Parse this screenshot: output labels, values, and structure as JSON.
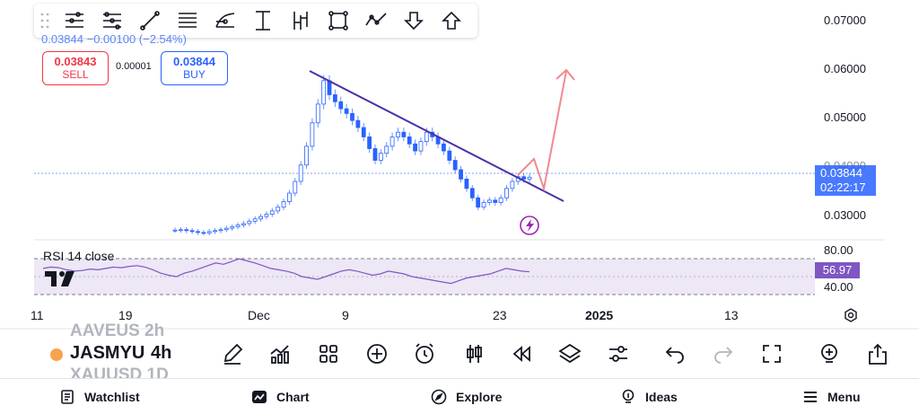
{
  "toolbar_icons": [
    "drag-handle-icon",
    "horizontal-lines-icon",
    "parallel-channel-icon",
    "trend-line-icon",
    "fib-lines-icon",
    "pitchfork-icon",
    "measure-icon",
    "price-range-icon",
    "rectangle-icon",
    "path-icon",
    "arrow-down-icon",
    "arrow-up-icon"
  ],
  "legend": {
    "text": "0.03844 −0.00100 (−2.54%)"
  },
  "trade": {
    "sell_price": "0.03843",
    "sell_label": "SELL",
    "spread": "0.00001",
    "buy_price": "0.03844",
    "buy_label": "BUY"
  },
  "price_scale": [
    "0.07000",
    "0.06000",
    "0.05000",
    "0.04000",
    "0.03000"
  ],
  "current_price": {
    "value": "0.03844",
    "countdown": "02:22:17"
  },
  "rsi": {
    "label": "RSI 14 close",
    "upper": "80.00",
    "lower": "40.00",
    "value": "56.97"
  },
  "time_scale": [
    "11",
    "19",
    "Dec",
    "9",
    "23",
    "2025",
    "13"
  ],
  "symbols": {
    "above": "AAVEUS 2h",
    "main": "JASMYU",
    "timeframe": "4h",
    "below": "XAUUSD 1D"
  },
  "tools": [
    "brush-icon",
    "indicators-icon",
    "templates-icon",
    "add-icon",
    "alert-icon",
    "replay-candles-icon",
    "bar-replay-icon",
    "layers-icon",
    "settings-sliders-icon",
    "undo-icon",
    "redo-icon",
    "fullscreen-icon",
    "ideas-bulb-icon",
    "share-icon"
  ],
  "nav": {
    "watchlist": "Watchlist",
    "chart": "Chart",
    "explore": "Explore",
    "ideas": "Ideas",
    "menu": "Menu"
  },
  "colors": {
    "trendline": "#4a2fa8",
    "projection": "#f08a8f",
    "rsi_line": "#7e57c2",
    "rsi_band": "#ede7f6",
    "candle": "#2962ff",
    "price_line": "#2962ff"
  },
  "chart_data": {
    "type": "candlestick",
    "price_range": [
      0.026,
      0.072
    ],
    "last_price": 0.03844,
    "trendline": {
      "from": 0.0598,
      "to": 0.0348
    },
    "closes": [
      0.0271,
      0.0272,
      0.027,
      0.0268,
      0.0266,
      0.0265,
      0.0268,
      0.027,
      0.0272,
      0.0275,
      0.0278,
      0.0282,
      0.0285,
      0.029,
      0.0295,
      0.03,
      0.0305,
      0.0312,
      0.032,
      0.0332,
      0.035,
      0.0375,
      0.041,
      0.045,
      0.05,
      0.054,
      0.059,
      0.056,
      0.0545,
      0.053,
      0.052,
      0.0505,
      0.049,
      0.047,
      0.0445,
      0.042,
      0.0435,
      0.045,
      0.047,
      0.048,
      0.047,
      0.0455,
      0.044,
      0.046,
      0.048,
      0.047,
      0.0455,
      0.044,
      0.042,
      0.04,
      0.038,
      0.036,
      0.034,
      0.032,
      0.033,
      0.0335,
      0.033,
      0.034,
      0.036,
      0.0375,
      0.0385,
      0.038,
      0.0384
    ],
    "rsi_series": [
      62,
      64,
      63,
      60,
      58,
      59,
      61,
      60,
      62,
      64,
      63,
      65,
      66,
      64,
      60,
      55,
      52,
      50,
      55,
      58,
      62,
      66,
      70,
      68,
      72,
      76,
      73,
      70,
      66,
      62,
      60,
      58,
      55,
      50,
      48,
      46,
      50,
      54,
      58,
      60,
      58,
      55,
      52,
      54,
      58,
      56,
      54,
      50,
      48,
      46,
      44,
      42,
      40,
      44,
      48,
      50,
      52,
      54,
      58,
      62,
      60,
      58,
      57
    ]
  }
}
